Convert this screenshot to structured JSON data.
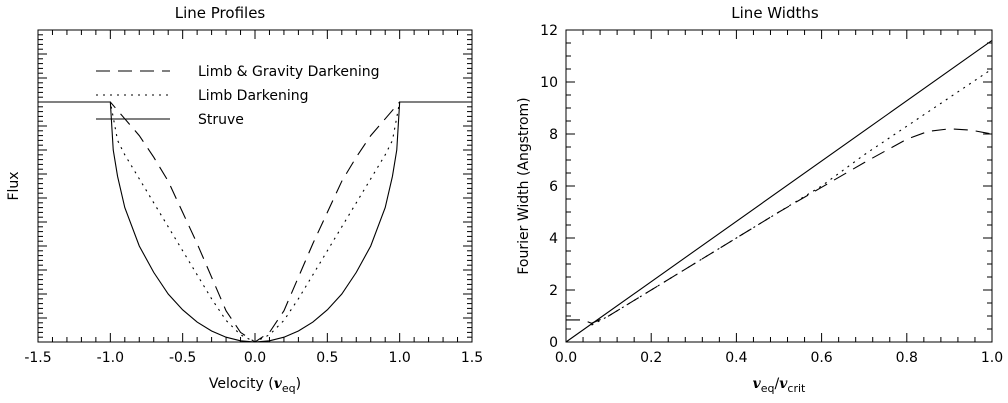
{
  "chart_data": [
    {
      "type": "line",
      "title": "Line Profiles",
      "xlabel_prefix": "Velocity (",
      "xlabel_var": "v",
      "xlabel_sub": "eq",
      "xlabel_suffix": ")",
      "ylabel": "Flux",
      "xlim": [
        -1.5,
        1.5
      ],
      "ylim": [
        0,
        1.3
      ],
      "xticks": [
        -1.5,
        -1.0,
        -0.5,
        0.0,
        0.5,
        1.0,
        1.5
      ],
      "xtick_labels": [
        "-1.5",
        "-1.0",
        "-0.5",
        "0.0",
        "0.5",
        "1.0",
        "1.5"
      ],
      "show_ytick_labels": false,
      "grid": false,
      "legend_position": "top-left",
      "series": [
        {
          "name": "Limb & Gravity Darkening",
          "style": "long-dash",
          "x": [
            -1.5,
            -1.0,
            -0.9,
            -0.8,
            -0.7,
            -0.6,
            -0.5,
            -0.4,
            -0.3,
            -0.2,
            -0.1,
            0.0,
            0.1,
            0.2,
            0.3,
            0.4,
            0.5,
            0.6,
            0.7,
            0.8,
            0.9,
            1.0,
            1.5
          ],
          "y": [
            1.0,
            1.0,
            0.93,
            0.86,
            0.77,
            0.67,
            0.54,
            0.41,
            0.27,
            0.13,
            0.04,
            0.0,
            0.04,
            0.13,
            0.27,
            0.41,
            0.54,
            0.67,
            0.77,
            0.86,
            0.93,
            1.0,
            1.0
          ]
        },
        {
          "name": "Limb Darkening",
          "style": "dotted",
          "x": [
            -1.5,
            -1.0,
            -0.95,
            -0.9,
            -0.8,
            -0.7,
            -0.6,
            -0.5,
            -0.4,
            -0.3,
            -0.2,
            -0.1,
            0.0,
            0.1,
            0.2,
            0.3,
            0.4,
            0.5,
            0.6,
            0.7,
            0.8,
            0.9,
            0.95,
            1.0,
            1.5
          ],
          "y": [
            1.0,
            1.0,
            0.84,
            0.78,
            0.68,
            0.58,
            0.48,
            0.38,
            0.28,
            0.18,
            0.09,
            0.03,
            0.0,
            0.03,
            0.09,
            0.18,
            0.28,
            0.38,
            0.48,
            0.58,
            0.68,
            0.78,
            0.84,
            1.0,
            1.0
          ]
        },
        {
          "name": "Struve",
          "style": "solid",
          "x": [
            -1.5,
            -1.0,
            -0.98,
            -0.95,
            -0.9,
            -0.8,
            -0.7,
            -0.6,
            -0.5,
            -0.4,
            -0.3,
            -0.2,
            -0.1,
            0.0,
            0.1,
            0.2,
            0.3,
            0.4,
            0.5,
            0.6,
            0.7,
            0.8,
            0.9,
            0.95,
            0.98,
            1.0,
            1.5
          ],
          "y": [
            1.0,
            1.0,
            0.8,
            0.69,
            0.56,
            0.4,
            0.29,
            0.2,
            0.134,
            0.083,
            0.046,
            0.02,
            0.005,
            0.0,
            0.005,
            0.02,
            0.046,
            0.083,
            0.134,
            0.2,
            0.29,
            0.4,
            0.56,
            0.69,
            0.8,
            1.0,
            1.0
          ]
        }
      ]
    },
    {
      "type": "line",
      "title": "Line Widths",
      "xlabel_var1": "v",
      "xlabel_sub1": "eq",
      "xlabel_sep": "/",
      "xlabel_var2": "v",
      "xlabel_sub2": "crit",
      "ylabel": "Fourier Width (Angstrom)",
      "xlim": [
        0.0,
        1.0
      ],
      "ylim": [
        0,
        12
      ],
      "xticks": [
        0.0,
        0.2,
        0.4,
        0.6,
        0.8,
        1.0
      ],
      "xtick_labels": [
        "0.0",
        "0.2",
        "0.4",
        "0.6",
        "0.8",
        "1.0"
      ],
      "yticks": [
        0,
        2,
        4,
        6,
        8,
        10,
        12
      ],
      "ytick_labels": [
        "0",
        "2",
        "4",
        "6",
        "8",
        "10",
        "12"
      ],
      "grid": false,
      "series": [
        {
          "style": "solid",
          "x": [
            0.0,
            1.0
          ],
          "y": [
            0.0,
            11.6
          ]
        },
        {
          "style": "dotted",
          "x": [
            0.06,
            0.1,
            0.2,
            0.3,
            0.4,
            0.5,
            0.6,
            0.7,
            0.8,
            0.9,
            1.0
          ],
          "y": [
            0.65,
            1.0,
            2.0,
            3.0,
            4.0,
            5.0,
            6.0,
            7.2,
            8.3,
            9.4,
            10.5
          ]
        },
        {
          "style": "long-dash",
          "x": [
            0.0,
            0.04,
            0.06,
            0.1,
            0.2,
            0.3,
            0.4,
            0.5,
            0.6,
            0.7,
            0.75,
            0.8,
            0.85,
            0.9,
            0.95,
            1.0
          ],
          "y": [
            0.85,
            0.85,
            0.72,
            1.0,
            2.0,
            3.0,
            4.0,
            5.0,
            5.95,
            6.9,
            7.35,
            7.8,
            8.1,
            8.2,
            8.15,
            8.0
          ]
        }
      ]
    }
  ]
}
